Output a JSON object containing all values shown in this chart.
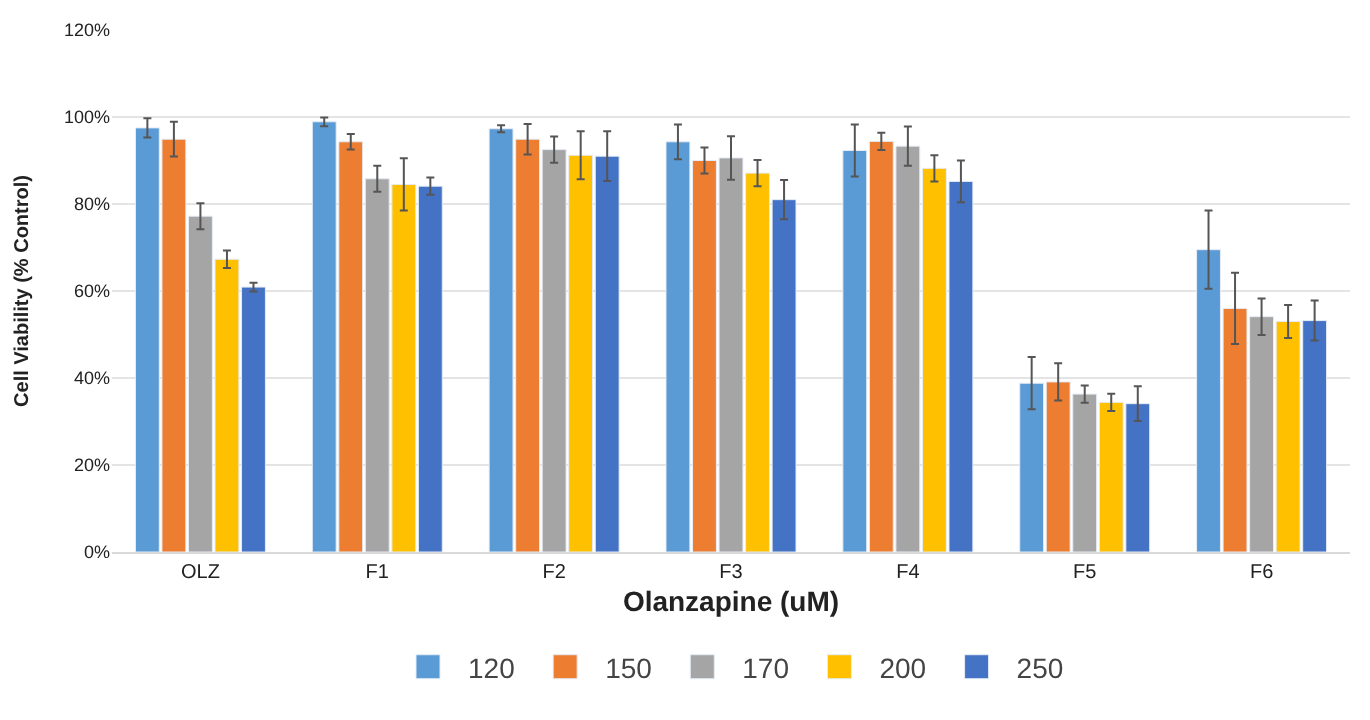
{
  "chart_data": {
    "type": "bar",
    "xlabel": "Olanzapine (uM)",
    "ylabel": "Cell Viability (% Control)",
    "categories": [
      "OLZ",
      "F1",
      "F2",
      "F3",
      "F4",
      "F5",
      "F6"
    ],
    "series": [
      {
        "name": "120",
        "color": "#5b9bd5",
        "values": [
          97.5,
          98.9,
          97.3,
          94.3,
          92.3,
          38.8,
          69.5
        ],
        "errors": [
          2.2,
          1,
          0.8,
          4,
          6,
          6,
          9
        ]
      },
      {
        "name": "150",
        "color": "#ed7d31",
        "values": [
          94.9,
          94.3,
          94.9,
          90.0,
          94.4,
          39.1,
          56.0
        ],
        "errors": [
          4,
          1.8,
          3.5,
          3,
          2,
          4.3,
          8.2
        ]
      },
      {
        "name": "170",
        "color": "#a5a5a5",
        "values": [
          77.2,
          85.8,
          92.5,
          90.6,
          93.3,
          36.3,
          54.1
        ],
        "errors": [
          3,
          3,
          3,
          5,
          4.5,
          2,
          4.2
        ]
      },
      {
        "name": "200",
        "color": "#ffc000",
        "values": [
          67.3,
          84.5,
          91.2,
          87.1,
          88.2,
          34.4,
          53.0
        ],
        "errors": [
          2,
          6,
          5.5,
          3,
          3,
          2,
          3.8
        ]
      },
      {
        "name": "250",
        "color": "#4472c4",
        "values": [
          60.9,
          84.1,
          91.0,
          81.0,
          85.2,
          34.1,
          53.2
        ],
        "errors": [
          1,
          2,
          5.7,
          4.5,
          4.8,
          4,
          4.6
        ]
      }
    ],
    "ylim": [
      0,
      120
    ],
    "yticks": [
      {
        "value": 0,
        "label": "0%"
      },
      {
        "value": 20,
        "label": "20%"
      },
      {
        "value": 40,
        "label": "40%"
      },
      {
        "value": 60,
        "label": "60%"
      },
      {
        "value": 80,
        "label": "80%"
      },
      {
        "value": 100,
        "label": "100%"
      },
      {
        "value": 120,
        "label": "120%"
      }
    ],
    "grid": "y",
    "legend": "bottom"
  }
}
